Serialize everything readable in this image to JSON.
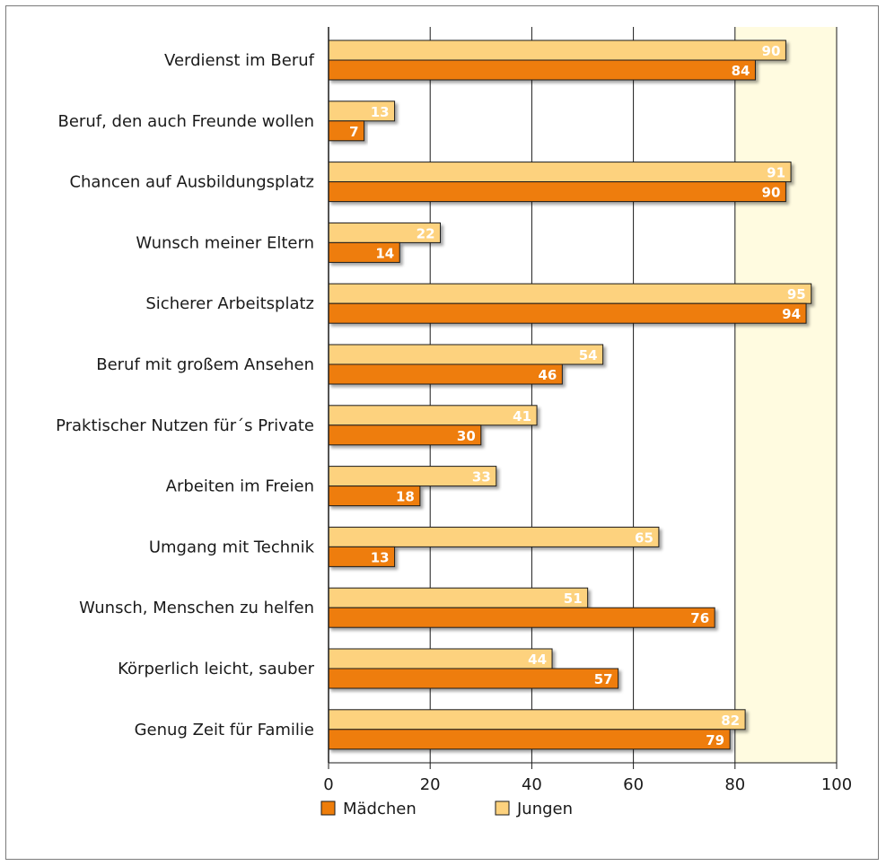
{
  "chart_data": {
    "type": "bar",
    "orientation": "horizontal",
    "title": "",
    "xlabel": "",
    "ylabel": "",
    "xlim": [
      0,
      100
    ],
    "xticks": [
      0,
      20,
      40,
      60,
      80,
      100
    ],
    "tick_labels": [
      "0",
      "20",
      "40",
      "60",
      "80",
      "100"
    ],
    "grid": true,
    "legend_position": "bottom-left",
    "categories": [
      "Verdienst im Beruf",
      "Beruf, den auch Freunde wollen",
      "Chancen auf Ausbildungsplatz",
      "Wunsch meiner Eltern",
      "Sicherer Arbeitsplatz",
      "Beruf mit großem Ansehen",
      "Praktischer Nutzen für´s Private",
      "Arbeiten im Freien",
      "Umgang mit Technik",
      "Wunsch, Menschen zu helfen",
      "Körperlich leicht, sauber",
      "Genug Zeit für Familie"
    ],
    "series": [
      {
        "name": "Jungen",
        "color": "#fdd27e",
        "values": [
          90,
          13,
          91,
          22,
          95,
          54,
          41,
          33,
          65,
          51,
          44,
          82
        ]
      },
      {
        "name": "Mädchen",
        "color": "#ee7d0a",
        "values": [
          84,
          7,
          90,
          14,
          94,
          46,
          30,
          18,
          13,
          76,
          57,
          79
        ]
      }
    ],
    "legend_order": [
      "Mädchen",
      "Jungen"
    ],
    "background_band": {
      "from": 80,
      "to": 100,
      "color": "#fffbe0"
    }
  }
}
